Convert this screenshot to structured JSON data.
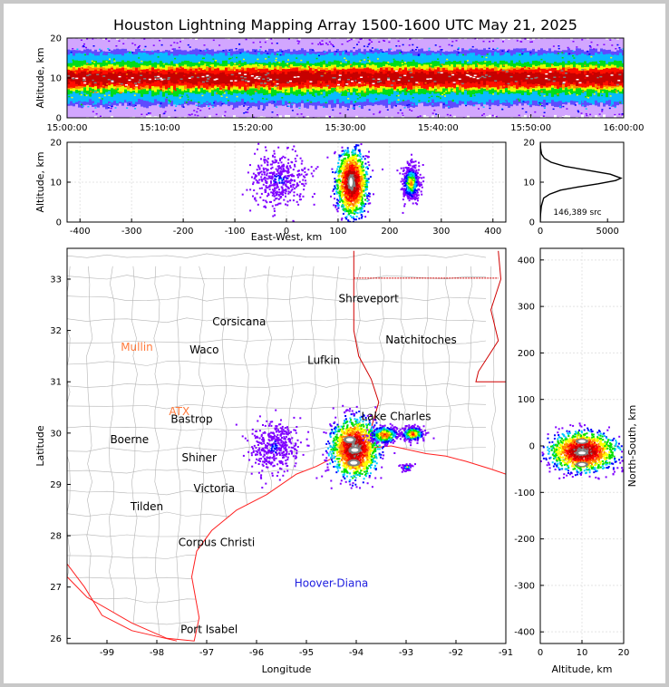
{
  "figure_title": "Houston Lightning Mapping Array 1500-1600 UTC May 21, 2025",
  "colors": {
    "density_scale": [
      "#7f00ff",
      "#0000ff",
      "#00c8ff",
      "#00e000",
      "#ffff00",
      "#ff8000",
      "#ff0000",
      "#c00000",
      "#808080",
      "#ffffff"
    ],
    "coastline": "#ff2020",
    "state_border": "#d00000",
    "county_border": "#b4b4b4",
    "profile_line": "#000000",
    "city_label": "#000000",
    "radar_label": "#ff7a3c",
    "buoy_label": "#2020e0",
    "station_marker": "#44cc44"
  },
  "chart_data": [
    {
      "type": "heatmap",
      "panel": "altitude-vs-time",
      "x": {
        "label": "",
        "ticks": [
          "15:00:00",
          "15:10:00",
          "15:20:00",
          "15:30:00",
          "15:40:00",
          "15:50:00",
          "16:00:00"
        ],
        "range": [
          "15:00:00",
          "16:00:00"
        ]
      },
      "y": {
        "label": "Altitude, km",
        "ticks": [
          0,
          10,
          20
        ],
        "range": [
          0,
          20
        ]
      },
      "density_band_altitude_km": {
        "core": 10,
        "inner": [
          7,
          13
        ],
        "outer": [
          3,
          17
        ],
        "sparse": [
          0,
          20
        ]
      }
    },
    {
      "type": "heatmap",
      "panel": "east-west-vs-altitude",
      "x": {
        "label": "East-West, km",
        "ticks": [
          -400,
          -300,
          -200,
          -100,
          0,
          100,
          200,
          300,
          400
        ],
        "range": [
          -425,
          425
        ]
      },
      "y": {
        "label": "Altitude, km",
        "ticks": [
          0,
          10,
          20
        ],
        "range": [
          0,
          20
        ]
      },
      "clusters": [
        {
          "center_x_km": -15,
          "center_alt_km": 11,
          "extent_x_km": 60,
          "extent_alt_km": 8,
          "intensity": "sparse"
        },
        {
          "center_x_km": 125,
          "center_alt_km": 10,
          "extent_x_km": 28,
          "extent_alt_km": 9,
          "intensity": "peak"
        },
        {
          "center_x_km": 240,
          "center_alt_km": 10,
          "extent_x_km": 18,
          "extent_alt_km": 5,
          "intensity": "moderate"
        }
      ]
    },
    {
      "type": "line",
      "panel": "altitude-histogram",
      "x": {
        "label": "",
        "ticks": [
          0,
          5000
        ],
        "range": [
          0,
          6200
        ]
      },
      "y": {
        "label": "",
        "ticks": [
          0,
          10,
          20
        ],
        "range": [
          0,
          20
        ]
      },
      "annotation": "146,389 src",
      "series": [
        {
          "x": [
            0,
            20,
            80,
            250,
            700,
            1500,
            2800,
            4300,
            5600,
            6000,
            5200,
            3500,
            1800,
            800,
            300,
            100,
            30,
            0
          ],
          "y": [
            0,
            2,
            4,
            6,
            7,
            8,
            8.8,
            9.6,
            10.4,
            11,
            12,
            13,
            14,
            15,
            16,
            17,
            18.5,
            20
          ]
        }
      ]
    },
    {
      "type": "heatmap",
      "panel": "plan-view-map",
      "x": {
        "label": "Longitude",
        "ticks": [
          -99,
          -98,
          -97,
          -96,
          -95,
          -94,
          -93,
          -92,
          -91
        ],
        "range": [
          -99.8,
          -91
        ]
      },
      "y": {
        "label": "Latitude",
        "ticks": [
          26,
          27,
          28,
          29,
          30,
          31,
          32,
          33
        ],
        "range": [
          25.9,
          33.6
        ]
      },
      "cities": [
        {
          "name": "Shreveport",
          "lon": -93.75,
          "lat": 32.55
        },
        {
          "name": "Corsicana",
          "lon": -96.35,
          "lat": 32.1
        },
        {
          "name": "Waco",
          "lon": -97.05,
          "lat": 31.55
        },
        {
          "name": "Natchitoches",
          "lon": -92.7,
          "lat": 31.75
        },
        {
          "name": "Lufkin",
          "lon": -94.65,
          "lat": 31.35
        },
        {
          "name": "Lake Charles",
          "lon": -93.2,
          "lat": 30.25
        },
        {
          "name": "Boerne",
          "lon": -98.55,
          "lat": 29.8
        },
        {
          "name": "Bastrop",
          "lon": -97.3,
          "lat": 30.2
        },
        {
          "name": "Shiner",
          "lon": -97.15,
          "lat": 29.45
        },
        {
          "name": "Victoria",
          "lon": -96.85,
          "lat": 28.85
        },
        {
          "name": "Tilden",
          "lon": -98.2,
          "lat": 28.5
        },
        {
          "name": "Corpus Christi",
          "lon": -96.8,
          "lat": 27.8
        },
        {
          "name": "Port Isabel",
          "lon": -96.95,
          "lat": 26.1
        }
      ],
      "radars": [
        {
          "name": "Mullin",
          "lon": -98.4,
          "lat": 31.6
        },
        {
          "name": "ATX",
          "lon": -97.55,
          "lat": 30.35
        }
      ],
      "buoys": [
        {
          "name": "Hoover-Diana",
          "lon": -94.5,
          "lat": 27.0
        }
      ],
      "clusters": [
        {
          "lon": -95.65,
          "lat": 29.75,
          "radius_deg": 0.5,
          "intensity": "sparse"
        },
        {
          "lon": -94.05,
          "lat": 29.72,
          "radius_deg": 0.5,
          "intensity": "peak"
        },
        {
          "lon": -93.45,
          "lat": 29.98,
          "radius_deg": 0.28,
          "intensity": "moderate"
        },
        {
          "lon": -92.88,
          "lat": 30.0,
          "radius_deg": 0.22,
          "intensity": "moderate"
        },
        {
          "lon": -93.0,
          "lat": 29.35,
          "radius_deg": 0.12,
          "intensity": "light"
        }
      ]
    },
    {
      "type": "heatmap",
      "panel": "altitude-vs-north-south",
      "x": {
        "label": "Altitude, km",
        "ticks": [
          0,
          10,
          20
        ],
        "range": [
          0,
          20
        ]
      },
      "y": {
        "label": "North-South, km",
        "ticks": [
          -400,
          -300,
          -200,
          -100,
          0,
          100,
          200,
          300,
          400
        ],
        "range": [
          -425,
          425
        ]
      },
      "clusters": [
        {
          "center_alt_km": 10,
          "center_y_km": -10,
          "extent_alt_km": 9,
          "extent_y_km": 45,
          "intensity": "peak"
        }
      ]
    }
  ]
}
